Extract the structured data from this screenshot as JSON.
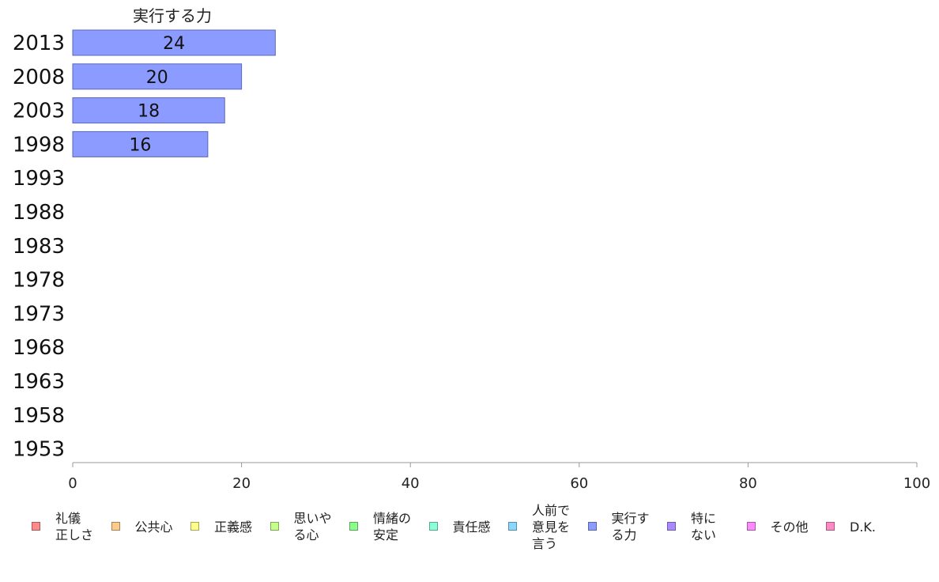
{
  "chart_data": {
    "type": "bar",
    "orientation": "horizontal",
    "title": "実行する力",
    "categories": [
      "2013",
      "2008",
      "2003",
      "1998",
      "1993",
      "1988",
      "1983",
      "1978",
      "1973",
      "1968",
      "1963",
      "1958",
      "1953"
    ],
    "series": [
      {
        "name": "実行する力",
        "color": "#8b9bff",
        "values": [
          24,
          20,
          18,
          16,
          null,
          null,
          null,
          null,
          null,
          null,
          null,
          null,
          null
        ],
        "labels": [
          "24",
          "20",
          "18",
          "16",
          "",
          "",
          "",
          "",
          "",
          "",
          "",
          "",
          ""
        ]
      }
    ],
    "xlim": [
      0,
      100
    ],
    "xticks": [
      "0",
      "20",
      "40",
      "60",
      "80",
      "100"
    ],
    "grid": false,
    "legend_position": "bottom"
  },
  "legend": [
    {
      "label": "礼儀\n正しさ",
      "color": "#ff8a8a"
    },
    {
      "label": "公共心",
      "color": "#ffc98a"
    },
    {
      "label": "正義感",
      "color": "#ffff8a"
    },
    {
      "label": "思いや\nる心",
      "color": "#c4ff8a"
    },
    {
      "label": "情緒の\n安定",
      "color": "#8aff8a"
    },
    {
      "label": "責任感",
      "color": "#8affd8"
    },
    {
      "label": "人前で\n意見を\n言う",
      "color": "#8ad8ff"
    },
    {
      "label": "実行す\nる力",
      "color": "#8b9bff"
    },
    {
      "label": "特に\nない",
      "color": "#a98aff"
    },
    {
      "label": "その他",
      "color": "#ff8aff"
    },
    {
      "label": "D.K.",
      "color": "#ff8ac4"
    }
  ]
}
